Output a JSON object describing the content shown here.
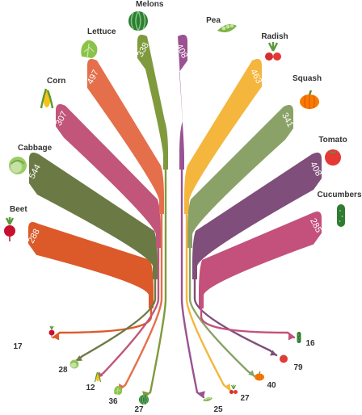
{
  "chart_data": {
    "type": "bar",
    "categories": [
      "Beet",
      "Cabbage",
      "Corn",
      "Lettuce",
      "Melons",
      "Pea",
      "Radish",
      "Squash",
      "Tomato",
      "Cucumbers"
    ],
    "series": [
      {
        "values": [
          288,
          544,
          307,
          497,
          338,
          408,
          463,
          341,
          408,
          285
        ]
      },
      {
        "values": [
          17,
          28,
          12,
          36,
          27,
          25,
          27,
          40,
          79,
          16
        ]
      }
    ],
    "title": "",
    "xlabel": "",
    "ylabel": ""
  },
  "colors": {
    "Beet": "#dc5a2a",
    "Cabbage": "#6b7a45",
    "Corn": "#c1557a",
    "Lettuce": "#e56f4a",
    "Melons": "#7f9a3d",
    "Pea": "#9a5292",
    "Radish": "#f4b63d",
    "Squash": "#8aa267",
    "Tomato": "#7f4e7a",
    "Cucumbers": "#c4507c"
  },
  "icons": {
    "Beet": "beet-icon",
    "Cabbage": "cabbage-icon",
    "Corn": "corn-icon",
    "Lettuce": "lettuce-icon",
    "Melons": "melon-icon",
    "Pea": "pea-icon",
    "Radish": "radish-icon",
    "Squash": "squash-icon",
    "Tomato": "tomato-icon",
    "Cucumbers": "cucumber-icon"
  }
}
